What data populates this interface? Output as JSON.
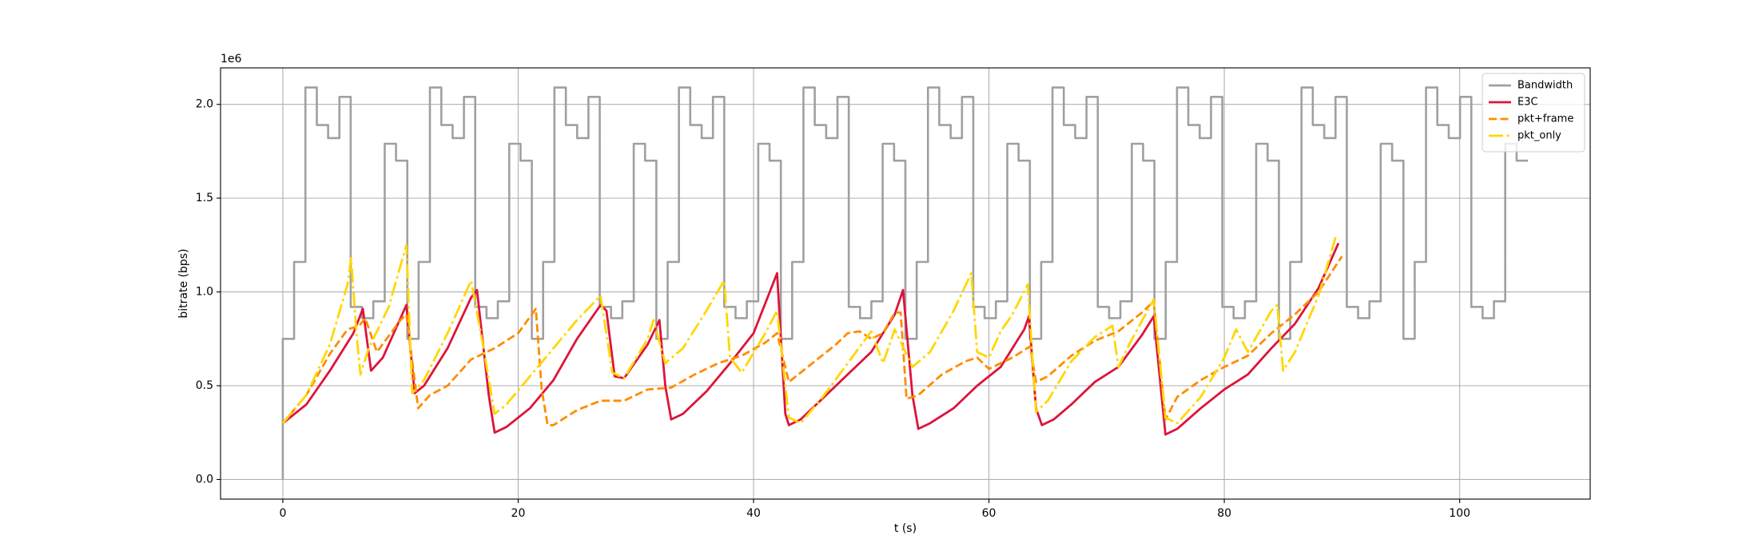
{
  "chart_data": {
    "type": "line",
    "xlabel": "t (s)",
    "ylabel": "bitrate (bps)",
    "y_offset_label": "1e6",
    "xlim": [
      -5.29,
      111.09
    ],
    "ylim": [
      -104500,
      2194500
    ],
    "xticks": [
      0,
      20,
      40,
      60,
      80,
      100
    ],
    "yticks": [
      {
        "value": 0,
        "label": "0.0"
      },
      {
        "value": 500000,
        "label": "0.5"
      },
      {
        "value": 1000000,
        "label": "1.0"
      },
      {
        "value": 1500000,
        "label": "1.5"
      },
      {
        "value": 2000000,
        "label": "2.0"
      }
    ],
    "grid": true,
    "legend": "upper right",
    "series": [
      {
        "name": "Bandwidth",
        "color": "#a0a0a0",
        "drawstyle": "steps-post",
        "linestyle": "solid",
        "x": [
          0,
          0.0,
          0.96,
          1.92,
          2.89,
          3.85,
          4.81,
          5.77,
          6.73,
          7.69,
          8.66,
          9.62,
          10.58,
          11.54,
          12.5,
          13.47,
          14.43,
          15.39,
          16.35,
          17.31,
          18.27,
          19.24,
          20.2,
          21.16,
          22.12,
          23.08,
          24.05,
          25.01,
          25.97,
          26.93,
          27.89,
          28.85,
          29.82,
          30.78,
          31.74,
          32.7,
          33.66,
          34.62,
          35.59,
          36.55,
          37.51,
          38.47,
          39.43,
          40.4,
          41.36,
          42.32,
          43.28,
          44.24,
          45.2,
          46.17,
          47.13,
          48.09,
          49.05,
          50.01,
          50.97,
          51.94,
          52.9,
          53.86,
          54.82,
          55.78,
          56.75,
          57.71,
          58.67,
          59.63,
          60.59,
          61.56,
          62.52,
          63.48,
          64.44,
          65.4,
          66.36,
          67.33,
          68.29,
          69.25,
          70.21,
          71.17,
          72.14,
          73.1,
          74.06,
          75.02,
          75.98,
          76.94,
          77.91,
          78.87,
          79.83,
          80.79,
          81.75,
          82.71,
          83.68,
          84.64,
          85.6,
          86.56,
          87.52,
          88.49,
          89.45,
          90.41,
          91.37,
          92.33,
          93.29,
          94.26,
          95.22,
          96.18,
          97.14,
          98.1,
          99.07,
          100.03,
          100.99,
          101.95,
          102.91,
          103.87,
          104.84,
          105.8
        ],
        "values": [
          0,
          750000,
          1160000,
          2090000,
          1890000,
          1820000,
          2040000,
          920000,
          860000,
          950000,
          1790000,
          1700000,
          750000,
          1160000,
          2090000,
          1890000,
          1820000,
          2040000,
          920000,
          860000,
          950000,
          1790000,
          1700000,
          750000,
          1160000,
          2090000,
          1890000,
          1820000,
          2040000,
          920000,
          860000,
          950000,
          1790000,
          1700000,
          750000,
          1160000,
          2090000,
          1890000,
          1820000,
          2040000,
          920000,
          860000,
          950000,
          1790000,
          1700000,
          750000,
          1160000,
          2090000,
          1890000,
          1820000,
          2040000,
          920000,
          860000,
          950000,
          1790000,
          1700000,
          750000,
          1160000,
          2090000,
          1890000,
          1820000,
          2040000,
          920000,
          860000,
          950000,
          1790000,
          1700000,
          750000,
          1160000,
          2090000,
          1890000,
          1820000,
          2040000,
          920000,
          860000,
          950000,
          1790000,
          1700000,
          750000,
          1160000,
          2090000,
          1890000,
          1820000,
          2040000,
          920000,
          860000,
          950000,
          1790000,
          1700000,
          750000,
          1160000,
          2090000,
          1890000,
          1820000,
          2040000,
          920000,
          860000,
          950000,
          1790000,
          1700000,
          750000,
          1160000,
          2090000,
          1890000,
          1820000,
          2040000,
          920000,
          860000,
          950000,
          1790000,
          1700000,
          1700000
        ]
      },
      {
        "name": "E3C",
        "color": "#dc143c",
        "drawstyle": "default",
        "linestyle": "solid",
        "x": [
          0,
          2,
          4,
          6,
          6.8,
          7.5,
          8.5,
          10.5,
          11.2,
          12,
          14,
          16,
          16.5,
          17.5,
          18,
          19,
          21,
          23,
          25,
          27,
          27.5,
          28.2,
          29,
          31,
          32,
          32.5,
          33,
          34,
          36,
          38,
          40,
          42,
          42.7,
          43,
          44,
          46,
          48,
          50,
          52,
          52.7,
          53.5,
          54,
          55,
          57,
          59,
          61,
          63,
          63.4,
          64,
          64.5,
          65.5,
          67,
          69,
          71,
          73,
          74,
          75,
          76,
          78,
          80,
          82,
          84,
          86,
          88,
          89.7
        ],
        "values": [
          300000,
          400000,
          580000,
          780000,
          910000,
          580000,
          650000,
          930000,
          460000,
          500000,
          700000,
          970000,
          1010000,
          450000,
          250000,
          280000,
          380000,
          530000,
          750000,
          930000,
          900000,
          550000,
          540000,
          720000,
          850000,
          500000,
          320000,
          350000,
          470000,
          620000,
          780000,
          1100000,
          350000,
          290000,
          320000,
          440000,
          560000,
          680000,
          880000,
          1010000,
          450000,
          270000,
          300000,
          380000,
          500000,
          600000,
          800000,
          870000,
          380000,
          290000,
          320000,
          400000,
          520000,
          600000,
          770000,
          870000,
          240000,
          270000,
          380000,
          480000,
          560000,
          700000,
          830000,
          1020000,
          1260000
        ]
      },
      {
        "name": "pkt+frame",
        "color": "#ff8c00",
        "drawstyle": "default",
        "linestyle": "dashed",
        "x": [
          0,
          2,
          4,
          5.5,
          6.5,
          7,
          8,
          10,
          10.5,
          11.5,
          12.5,
          14,
          16,
          18,
          20,
          21.5,
          22,
          22.5,
          23,
          25,
          27,
          29,
          31,
          33,
          35,
          37,
          39,
          41,
          42,
          43,
          45,
          47,
          48,
          49,
          50,
          51,
          52,
          52.5,
          53,
          54,
          56,
          58,
          59,
          60,
          62,
          63.5,
          64,
          65,
          67,
          69,
          71,
          73,
          74,
          75,
          76,
          78,
          80,
          82,
          84,
          86,
          88,
          90
        ],
        "values": [
          300000,
          450000,
          670000,
          800000,
          820000,
          860000,
          680000,
          850000,
          880000,
          380000,
          450000,
          500000,
          640000,
          700000,
          780000,
          910000,
          480000,
          290000,
          290000,
          370000,
          420000,
          420000,
          480000,
          490000,
          560000,
          620000,
          660000,
          730000,
          780000,
          520000,
          620000,
          720000,
          780000,
          790000,
          750000,
          780000,
          890000,
          890000,
          430000,
          450000,
          560000,
          630000,
          650000,
          590000,
          650000,
          710000,
          520000,
          550000,
          660000,
          740000,
          790000,
          890000,
          950000,
          320000,
          440000,
          530000,
          600000,
          660000,
          780000,
          880000,
          1000000,
          1190000
        ]
      },
      {
        "name": "pkt_only",
        "color": "#ffd700",
        "drawstyle": "default",
        "linestyle": "dashdot",
        "x": [
          0,
          2,
          4,
          5.5,
          5.8,
          6.3,
          6.6,
          7.3,
          9,
          10.5,
          11,
          12,
          14,
          16,
          17,
          18,
          19,
          21,
          23,
          25,
          27,
          28,
          29,
          31,
          31.5,
          32.5,
          34,
          36,
          37.5,
          38,
          39,
          41,
          42,
          43,
          44,
          46,
          48,
          50,
          51,
          52,
          53.5,
          55,
          57,
          58.5,
          59,
          60,
          61,
          62,
          63.3,
          64,
          65,
          67,
          69,
          70.5,
          71,
          72,
          74,
          75,
          76,
          78,
          80,
          81,
          82,
          84,
          84.5,
          85,
          86,
          88,
          89.5
        ],
        "values": [
          300000,
          450000,
          720000,
          1040000,
          1180000,
          750000,
          560000,
          700000,
          920000,
          1250000,
          460000,
          530000,
          780000,
          1060000,
          720000,
          350000,
          400000,
          550000,
          700000,
          850000,
          980000,
          570000,
          540000,
          750000,
          850000,
          620000,
          700000,
          900000,
          1060000,
          650000,
          570000,
          780000,
          900000,
          330000,
          300000,
          450000,
          620000,
          790000,
          620000,
          800000,
          600000,
          680000,
          900000,
          1100000,
          680000,
          650000,
          790000,
          880000,
          1040000,
          360000,
          420000,
          630000,
          760000,
          820000,
          600000,
          730000,
          960000,
          330000,
          300000,
          440000,
          650000,
          800000,
          680000,
          900000,
          930000,
          580000,
          680000,
          980000,
          1300000
        ]
      }
    ]
  }
}
